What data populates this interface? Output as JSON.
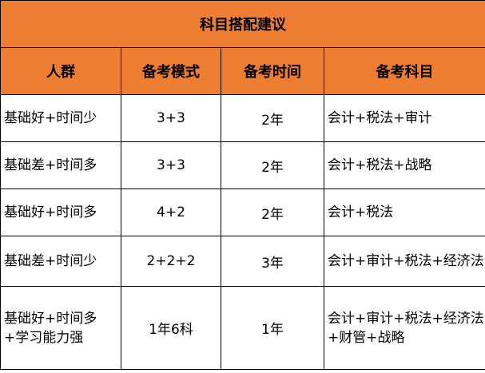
{
  "title": "科目搭配建议",
  "headers": [
    "人群",
    "备考模式",
    "备考时间",
    "备考科目"
  ],
  "rows": [
    {
      "group": "基础好+时间少",
      "mode": "3+3",
      "time": "2年",
      "subjects": "会计+税法+审计"
    },
    {
      "group": "基础差+时间多",
      "mode": "3+3",
      "time": "2年",
      "subjects": "会计+税法+战略"
    },
    {
      "group": "基础好+时间多",
      "mode": "4+2",
      "time": "2年",
      "subjects": "会计+税法"
    },
    {
      "group": "基础差+时间少",
      "mode": "2+2+2",
      "time": "3年",
      "subjects": "会计+审计+税法+经济法"
    },
    {
      "group": "基础好+时间多+学习能力强",
      "mode": "1年6科",
      "time": "1年",
      "subjects": "会计+审计+税法+经济法+财管+战略"
    }
  ],
  "colors": {
    "header_bg": "#ED7D31"
  }
}
